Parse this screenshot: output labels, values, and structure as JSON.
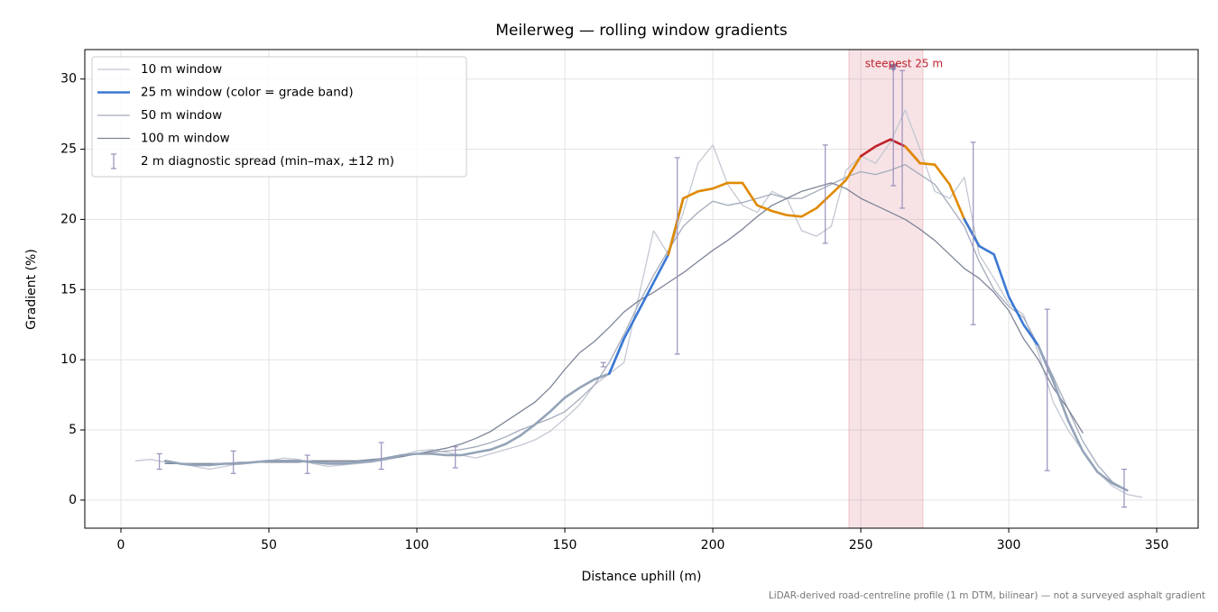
{
  "chart_data": {
    "type": "line",
    "title": "Meilerweg — rolling window gradients",
    "xlabel": "Distance uphill (m)",
    "ylabel": "Gradient (%)",
    "footnote": "LiDAR-derived road-centreline profile (1 m DTM, bilinear) — not a surveyed asphalt gradient",
    "xlim": [
      -12.2,
      364.0
    ],
    "ylim": [
      -2.0,
      32.1
    ],
    "xticks": [
      0,
      50,
      100,
      150,
      200,
      250,
      300,
      350
    ],
    "yticks": [
      0,
      5,
      10,
      15,
      20,
      25,
      30
    ],
    "grid": true,
    "legend": "upper left",
    "x": [
      5,
      10,
      15,
      20,
      25,
      30,
      35,
      40,
      45,
      50,
      55,
      60,
      65,
      70,
      75,
      80,
      85,
      90,
      95,
      100,
      105,
      110,
      115,
      120,
      125,
      130,
      135,
      140,
      145,
      150,
      155,
      160,
      165,
      170,
      175,
      180,
      185,
      190,
      195,
      200,
      205,
      210,
      215,
      220,
      225,
      230,
      235,
      240,
      245,
      250,
      255,
      260,
      265,
      270,
      275,
      280,
      285,
      290,
      295,
      300,
      305,
      310,
      315,
      320,
      325,
      330,
      335,
      340,
      345
    ],
    "series": [
      {
        "name": "10 m window",
        "color": "#c3c8d3",
        "width": 1.3,
        "values": [
          2.8,
          2.9,
          2.7,
          2.6,
          2.4,
          2.2,
          2.4,
          2.6,
          2.7,
          2.8,
          3.0,
          2.9,
          2.6,
          2.4,
          2.5,
          2.6,
          2.7,
          2.9,
          3.2,
          3.5,
          3.6,
          3.4,
          3.2,
          3.0,
          3.3,
          3.6,
          3.9,
          4.3,
          4.9,
          5.8,
          6.8,
          8.2,
          9.0,
          9.8,
          14.5,
          19.2,
          17.5,
          20.5,
          24.0,
          25.3,
          22.5,
          21.0,
          20.5,
          22.0,
          21.5,
          19.2,
          18.8,
          19.5,
          23.5,
          24.5,
          24.0,
          25.5,
          27.8,
          25.0,
          22.0,
          21.5,
          23.0,
          17.5,
          15.8,
          14.0,
          13.2,
          10.5,
          7.0,
          5.0,
          3.5,
          2.0,
          1.0,
          0.4,
          0.2
        ]
      },
      {
        "name": "25 m window (color = grade band)",
        "color": "#3a78d4",
        "width": 2.6,
        "band_thresholds": [
          10,
          20,
          25
        ],
        "band_colors": [
          "#94a3b8",
          "#3a78d4",
          "#e08a00",
          "#c0222e"
        ],
        "values": [
          null,
          null,
          2.8,
          2.6,
          2.5,
          2.5,
          2.6,
          2.6,
          2.7,
          2.8,
          2.8,
          2.8,
          2.7,
          2.6,
          2.6,
          2.7,
          2.8,
          3.0,
          3.2,
          3.3,
          3.3,
          3.2,
          3.2,
          3.4,
          3.6,
          4.0,
          4.6,
          5.4,
          6.3,
          7.3,
          8.0,
          8.6,
          9.0,
          11.5,
          13.5,
          15.5,
          17.5,
          21.5,
          22.0,
          22.2,
          22.6,
          22.6,
          21.0,
          20.6,
          20.3,
          20.2,
          20.8,
          21.8,
          22.8,
          24.5,
          25.2,
          25.7,
          25.2,
          24.0,
          23.9,
          22.5,
          20.0,
          18.1,
          17.5,
          14.5,
          12.5,
          11.0,
          8.5,
          5.7,
          3.5,
          2.0,
          1.2,
          0.7,
          null
        ]
      },
      {
        "name": "50 m window",
        "color": "#a3abbb",
        "width": 1.3,
        "values": [
          null,
          null,
          2.7,
          2.6,
          2.6,
          2.6,
          2.6,
          2.7,
          2.7,
          2.8,
          2.8,
          2.8,
          2.8,
          2.7,
          2.7,
          2.7,
          2.8,
          2.9,
          3.1,
          3.3,
          3.4,
          3.5,
          3.6,
          3.8,
          4.1,
          4.5,
          5.0,
          5.4,
          5.8,
          6.3,
          7.2,
          8.2,
          9.8,
          11.8,
          14.0,
          16.0,
          17.8,
          19.5,
          20.5,
          21.3,
          21.0,
          21.2,
          21.5,
          21.8,
          21.5,
          21.5,
          22.0,
          22.5,
          23.0,
          23.4,
          23.2,
          23.5,
          23.9,
          23.2,
          22.5,
          21.0,
          19.5,
          17.0,
          15.0,
          13.8,
          13.0,
          11.0,
          8.8,
          6.5,
          4.2,
          2.5,
          1.3,
          0.7,
          null
        ]
      },
      {
        "name": "100 m window",
        "color": "#7d8597",
        "width": 1.3,
        "values": [
          null,
          null,
          2.6,
          2.6,
          2.6,
          2.6,
          2.6,
          2.6,
          2.7,
          2.7,
          2.7,
          2.7,
          2.8,
          2.8,
          2.8,
          2.8,
          2.9,
          3.0,
          3.1,
          3.3,
          3.5,
          3.7,
          4.0,
          4.4,
          4.9,
          5.6,
          6.3,
          7.0,
          8.0,
          9.3,
          10.5,
          11.3,
          12.3,
          13.4,
          14.2,
          14.8,
          15.5,
          16.2,
          17.0,
          17.8,
          18.5,
          19.3,
          20.2,
          21.0,
          21.5,
          22.0,
          22.3,
          22.6,
          22.2,
          21.5,
          21.0,
          20.5,
          20.0,
          19.3,
          18.5,
          17.5,
          16.5,
          15.8,
          14.8,
          13.5,
          11.5,
          10.0,
          8.0,
          6.5,
          4.8,
          null,
          null,
          null,
          null
        ]
      }
    ],
    "errorbars": {
      "name": "2 m diagnostic spread (min–max, ±12 m)",
      "color": "#9a90bb",
      "x": [
        13,
        38,
        63,
        88,
        113,
        163,
        188,
        238,
        261,
        264,
        288,
        313,
        339
      ],
      "low": [
        2.2,
        1.9,
        1.9,
        2.2,
        2.3,
        9.5,
        10.4,
        18.3,
        22.4,
        20.8,
        12.5,
        2.1,
        -0.5
      ],
      "high": [
        3.3,
        3.5,
        3.2,
        4.1,
        3.8,
        9.8,
        24.4,
        25.3,
        30.7,
        30.6,
        25.5,
        13.6,
        2.2
      ]
    },
    "highlight": {
      "span": [
        246,
        271
      ],
      "color": "#d9808c",
      "label": "steepest 25 m",
      "marker_x": 261,
      "marker_y": 30.7
    }
  }
}
